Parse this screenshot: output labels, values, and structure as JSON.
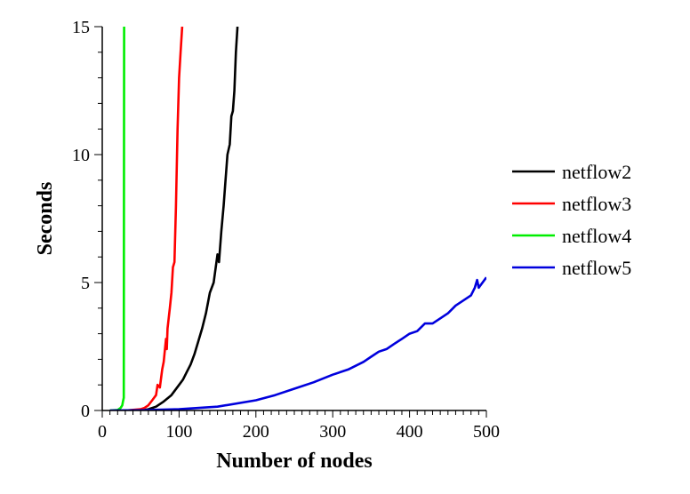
{
  "chart_data": {
    "type": "line",
    "title": "",
    "xlabel": "Number of nodes",
    "ylabel": "Seconds",
    "xlim": [
      0,
      500
    ],
    "ylim": [
      0,
      15
    ],
    "xticks": [
      0,
      100,
      200,
      300,
      400,
      500
    ],
    "yticks": [
      0,
      5,
      10,
      15
    ],
    "grid": false,
    "legend_position": "right",
    "series": [
      {
        "name": "netflow2",
        "color": "#000000",
        "x": [
          50,
          60,
          70,
          80,
          90,
          100,
          105,
          110,
          115,
          120,
          125,
          130,
          135,
          140,
          145,
          150,
          152,
          155,
          158,
          160,
          163,
          166,
          168,
          170,
          172,
          174,
          176
        ],
        "y": [
          0,
          0.05,
          0.15,
          0.35,
          0.6,
          1.0,
          1.2,
          1.5,
          1.8,
          2.2,
          2.7,
          3.2,
          3.8,
          4.6,
          5.0,
          6.1,
          5.8,
          7.0,
          8.0,
          8.8,
          10.0,
          10.4,
          11.5,
          11.7,
          12.5,
          14.0,
          15
        ]
      },
      {
        "name": "netflow3",
        "color": "#ff0000",
        "x": [
          30,
          50,
          55,
          60,
          65,
          70,
          72,
          75,
          78,
          80,
          83,
          84,
          85,
          88,
          90,
          92,
          94,
          96,
          98,
          100,
          102,
          104
        ],
        "y": [
          0,
          0.05,
          0.1,
          0.2,
          0.4,
          0.6,
          1.0,
          0.9,
          1.6,
          1.9,
          2.8,
          2.4,
          3.2,
          4.0,
          4.6,
          5.6,
          5.8,
          8.0,
          11.0,
          13.0,
          14.0,
          15
        ]
      },
      {
        "name": "netflow4",
        "color": "#00ee00",
        "x": [
          10,
          20,
          24,
          26,
          27,
          28,
          28.5
        ],
        "y": [
          0,
          0.02,
          0.1,
          0.2,
          0.35,
          0.5,
          15
        ]
      },
      {
        "name": "netflow5",
        "color": "#0000dd",
        "x": [
          10,
          50,
          100,
          150,
          200,
          225,
          250,
          275,
          300,
          320,
          340,
          350,
          360,
          370,
          380,
          390,
          400,
          410,
          420,
          430,
          440,
          450,
          460,
          470,
          480,
          485,
          488,
          490,
          495,
          500
        ],
        "y": [
          0,
          0.01,
          0.05,
          0.15,
          0.4,
          0.6,
          0.85,
          1.1,
          1.4,
          1.6,
          1.9,
          2.1,
          2.3,
          2.4,
          2.6,
          2.8,
          3.0,
          3.1,
          3.4,
          3.4,
          3.6,
          3.8,
          4.1,
          4.3,
          4.5,
          4.8,
          5.1,
          4.8,
          5.0,
          5.2
        ]
      }
    ]
  }
}
